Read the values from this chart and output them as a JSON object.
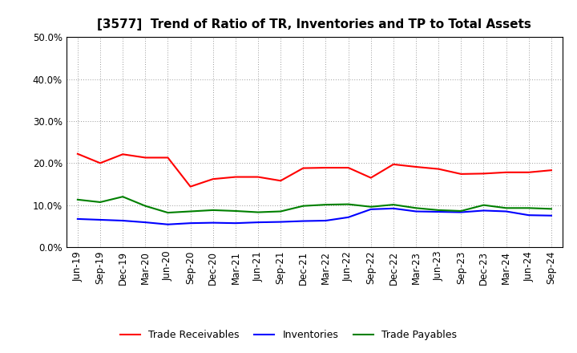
{
  "title": "[3577]  Trend of Ratio of TR, Inventories and TP to Total Assets",
  "x_labels": [
    "Jun-19",
    "Sep-19",
    "Dec-19",
    "Mar-20",
    "Jun-20",
    "Sep-20",
    "Dec-20",
    "Mar-21",
    "Jun-21",
    "Sep-21",
    "Dec-21",
    "Mar-22",
    "Jun-22",
    "Sep-22",
    "Dec-22",
    "Mar-23",
    "Jun-23",
    "Sep-23",
    "Dec-23",
    "Mar-24",
    "Jun-24",
    "Sep-24"
  ],
  "trade_receivables": [
    0.222,
    0.2,
    0.221,
    0.213,
    0.213,
    0.144,
    0.162,
    0.167,
    0.167,
    0.158,
    0.188,
    0.189,
    0.189,
    0.165,
    0.197,
    0.191,
    0.186,
    0.174,
    0.175,
    0.178,
    0.178,
    0.183
  ],
  "inventories": [
    0.067,
    0.065,
    0.063,
    0.059,
    0.054,
    0.057,
    0.058,
    0.057,
    0.059,
    0.06,
    0.062,
    0.063,
    0.071,
    0.09,
    0.092,
    0.085,
    0.084,
    0.083,
    0.087,
    0.085,
    0.076,
    0.075
  ],
  "trade_payables": [
    0.113,
    0.107,
    0.12,
    0.098,
    0.082,
    0.085,
    0.088,
    0.086,
    0.083,
    0.085,
    0.098,
    0.101,
    0.102,
    0.096,
    0.101,
    0.093,
    0.088,
    0.086,
    0.1,
    0.093,
    0.093,
    0.091
  ],
  "tr_color": "#ff0000",
  "inv_color": "#0000ff",
  "tp_color": "#008000",
  "ylim": [
    0.0,
    0.5
  ],
  "yticks": [
    0.0,
    0.1,
    0.2,
    0.3,
    0.4,
    0.5
  ],
  "background_color": "#ffffff",
  "grid_color": "#999999",
  "legend_labels": [
    "Trade Receivables",
    "Inventories",
    "Trade Payables"
  ],
  "title_fontsize": 11,
  "tick_fontsize": 8.5,
  "legend_fontsize": 9
}
